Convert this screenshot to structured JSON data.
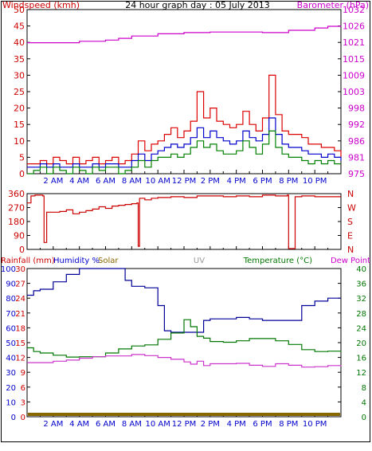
{
  "colors": {
    "windspeed": "#cc0000",
    "wind_gust": "#dd0000",
    "wind_avg": "#0000cc",
    "wind_min": "#008000",
    "barometer": "#cc00cc",
    "direction": "#cc0000",
    "humidity": "#000099",
    "temperature": "#007700",
    "dew_point": "#cc33cc",
    "solar": "#886600",
    "uv": "#999999",
    "axis_red": "#cc0000",
    "axis_blue": "#0000cc",
    "axis_green": "#007700",
    "axis_magenta": "#cc00cc"
  },
  "chart_data": [
    {
      "type": "line",
      "title": "24 hour graph day : 05 July 2013",
      "ylabel_left": "Windspeed (kmh)",
      "ylabel_right": "Barometer (hPa)",
      "x_ticks": [
        "2 AM",
        "4 AM",
        "6 AM",
        "8 AM",
        "10 AM",
        "12 PM",
        "2 PM",
        "4 PM",
        "6 PM",
        "8 PM",
        "10 PM"
      ],
      "y_ticks_left": [
        "0",
        "5",
        "10",
        "15",
        "20",
        "25",
        "30",
        "35",
        "40",
        "45",
        "50"
      ],
      "y_ticks_right": [
        "975",
        "981",
        "986",
        "992",
        "998",
        "1003",
        "1009",
        "1015",
        "1021",
        "1026",
        "1032"
      ],
      "ylim_left": [
        0,
        50
      ],
      "ylim_right": [
        975,
        1032
      ],
      "x_range_hours": [
        0,
        24
      ],
      "grid": false,
      "series": [
        {
          "key": "gust",
          "axis": "left",
          "x": [
            0,
            0.5,
            1,
            1.5,
            2,
            2.5,
            3,
            3.5,
            4,
            4.5,
            5,
            5.5,
            6,
            6.5,
            7,
            7.5,
            8,
            8.5,
            9,
            9.5,
            10,
            10.5,
            11,
            11.5,
            12,
            12.5,
            13,
            13.5,
            14,
            14.5,
            15,
            15.5,
            16,
            16.5,
            17,
            17.5,
            18,
            18.5,
            19,
            19.5,
            20,
            20.5,
            21,
            21.5,
            22,
            22.5,
            23,
            23.5,
            24
          ],
          "values": [
            3,
            3,
            4,
            3,
            5,
            4,
            3,
            5,
            3,
            4,
            5,
            3,
            4,
            5,
            3,
            4,
            6,
            10,
            7,
            9,
            10,
            12,
            14,
            11,
            13,
            16,
            25,
            17,
            20,
            16,
            15,
            14,
            15,
            19,
            15,
            13,
            17,
            30,
            18,
            13,
            12,
            12,
            11,
            9,
            9,
            8,
            8,
            7,
            5
          ]
        },
        {
          "key": "average",
          "axis": "left",
          "x": [
            0,
            0.5,
            1,
            1.5,
            2,
            2.5,
            3,
            3.5,
            4,
            4.5,
            5,
            5.5,
            6,
            6.5,
            7,
            7.5,
            8,
            8.5,
            9,
            9.5,
            10,
            10.5,
            11,
            11.5,
            12,
            12.5,
            13,
            13.5,
            14,
            14.5,
            15,
            15.5,
            16,
            16.5,
            17,
            17.5,
            18,
            18.5,
            19,
            19.5,
            20,
            20.5,
            21,
            21.5,
            22,
            22.5,
            23,
            23.5,
            24
          ],
          "values": [
            2,
            2,
            3,
            2,
            3,
            2,
            2,
            3,
            2,
            2,
            3,
            2,
            3,
            3,
            2,
            2,
            4,
            6,
            4,
            6,
            7,
            8,
            9,
            8,
            9,
            11,
            14,
            11,
            13,
            11,
            10,
            9,
            10,
            13,
            11,
            10,
            12,
            17,
            12,
            9,
            8,
            8,
            7,
            6,
            6,
            5,
            6,
            5,
            4
          ]
        },
        {
          "key": "lull",
          "axis": "left",
          "x": [
            0,
            0.5,
            1,
            1.5,
            2,
            2.5,
            3,
            3.5,
            4,
            4.5,
            5,
            5.5,
            6,
            6.5,
            7,
            7.5,
            8,
            8.5,
            9,
            9.5,
            10,
            10.5,
            11,
            11.5,
            12,
            12.5,
            13,
            13.5,
            14,
            14.5,
            15,
            15.5,
            16,
            16.5,
            17,
            17.5,
            18,
            18.5,
            19,
            19.5,
            20,
            20.5,
            21,
            21.5,
            22,
            22.5,
            23,
            23.5,
            24
          ],
          "values": [
            0,
            1,
            2,
            0,
            2,
            1,
            0,
            2,
            1,
            0,
            2,
            1,
            2,
            2,
            0,
            1,
            2,
            4,
            2,
            4,
            5,
            5,
            6,
            5,
            6,
            8,
            10,
            8,
            9,
            7,
            6,
            6,
            7,
            10,
            8,
            6,
            9,
            13,
            8,
            6,
            5,
            5,
            4,
            3,
            4,
            3,
            4,
            3,
            3
          ]
        },
        {
          "key": "barometer",
          "axis": "right",
          "x": [
            0,
            2,
            4,
            6,
            7,
            8,
            10,
            12,
            14,
            16,
            18,
            20,
            22,
            23,
            24
          ],
          "values": [
            1020.5,
            1020.5,
            1021.0,
            1021.4,
            1022.0,
            1022.8,
            1023.6,
            1024.0,
            1024.2,
            1024.2,
            1024.0,
            1024.8,
            1025.6,
            1026.2,
            1026.4
          ]
        }
      ]
    },
    {
      "type": "line",
      "ylabel_left": "",
      "y_ticks_left": [
        "360",
        "270",
        "180",
        "90",
        "0"
      ],
      "y_ticks_right": [
        "N",
        "W",
        "S",
        "E",
        "N"
      ],
      "ylim": [
        0,
        360
      ],
      "x_range_hours": [
        0,
        24
      ],
      "series": [
        {
          "key": "direction",
          "x": [
            0,
            0.3,
            0.6,
            1.2,
            1.3,
            1.5,
            2.5,
            3,
            3.5,
            4,
            4.5,
            5,
            5.5,
            6,
            6.5,
            7,
            7.5,
            8,
            8.4,
            8.5,
            8.6,
            9,
            9.5,
            10,
            11,
            12,
            13,
            14,
            15,
            16,
            17,
            18,
            19,
            19.9,
            20,
            20.4,
            20.5,
            21,
            22,
            23,
            24
          ],
          "values": [
            300,
            345,
            350,
            345,
            45,
            240,
            245,
            255,
            230,
            240,
            250,
            260,
            275,
            265,
            280,
            285,
            290,
            295,
            300,
            20,
            330,
            320,
            330,
            335,
            340,
            335,
            345,
            345,
            340,
            345,
            340,
            350,
            345,
            350,
            5,
            5,
            340,
            345,
            340,
            340,
            340
          ]
        }
      ]
    },
    {
      "type": "line",
      "labels": {
        "rainfall": "Rainfall (mm)",
        "humidity": "Humidity %",
        "solar": "Solar",
        "uv": "UV",
        "temperature": "Temperature (°C)",
        "dew_point": "Dew Point"
      },
      "y_ticks_rain": [
        "30",
        "27",
        "24",
        "21",
        "18",
        "15",
        "12",
        "9",
        "6",
        "3",
        "0"
      ],
      "y_ticks_humidity": [
        "100",
        "90",
        "80",
        "70",
        "60",
        "50",
        "40",
        "30",
        "20",
        "10",
        "0"
      ],
      "y_ticks_temp": [
        "40",
        "36",
        "32",
        "28",
        "24",
        "20",
        "16",
        "12",
        "8",
        "4",
        "0"
      ],
      "ylim_humidity": [
        0,
        100
      ],
      "ylim_temp": [
        0,
        40
      ],
      "x_range_hours": [
        0,
        24
      ],
      "series": [
        {
          "key": "humidity",
          "axis": "humidity",
          "x": [
            0,
            0.5,
            1,
            2,
            3,
            4,
            5,
            6,
            7,
            7.5,
            8,
            9,
            10,
            10.5,
            11,
            12,
            13,
            13.5,
            14,
            15,
            16,
            17,
            18,
            19,
            20,
            21,
            22,
            23,
            24
          ],
          "values": [
            82,
            85,
            86,
            91,
            96,
            100,
            100,
            100,
            100,
            92,
            88,
            87,
            75,
            58,
            57,
            57,
            57,
            65,
            66,
            66,
            67,
            66,
            65,
            65,
            65,
            75,
            78,
            80,
            80
          ]
        },
        {
          "key": "temperature",
          "axis": "temp",
          "x": [
            0,
            0.5,
            1,
            2,
            3,
            4,
            5,
            6,
            7,
            8,
            9,
            10,
            11,
            12,
            12.5,
            13,
            13.5,
            14,
            15,
            16,
            17,
            18,
            19,
            20,
            21,
            22,
            23,
            24
          ],
          "values": [
            18.6,
            17.6,
            17.2,
            16.6,
            16.1,
            16.2,
            16.2,
            17.2,
            18.3,
            19.1,
            19.4,
            20.9,
            22.6,
            26.2,
            24.3,
            21.7,
            21.2,
            20.3,
            20.1,
            20.5,
            21.1,
            21.1,
            20.5,
            19.5,
            18.1,
            17.6,
            17.7,
            17.9
          ]
        },
        {
          "key": "dew_point",
          "axis": "temp",
          "x": [
            0,
            1,
            2,
            3,
            4,
            5,
            6,
            7,
            8,
            9,
            10,
            11,
            12,
            12.5,
            13,
            13.5,
            14,
            15,
            16,
            17,
            18,
            19,
            20,
            21,
            22,
            23,
            24
          ],
          "values": [
            14.6,
            14.6,
            15.0,
            15.3,
            15.8,
            16.2,
            16.4,
            16.4,
            16.8,
            16.5,
            16.0,
            15.5,
            14.8,
            14.2,
            15.0,
            13.8,
            14.3,
            14.3,
            14.4,
            13.9,
            13.6,
            14.3,
            13.9,
            13.4,
            13.5,
            13.8,
            13.6
          ]
        },
        {
          "key": "solar",
          "axis": "rain",
          "x": [
            0,
            24
          ],
          "values": [
            0,
            0
          ]
        }
      ]
    }
  ]
}
